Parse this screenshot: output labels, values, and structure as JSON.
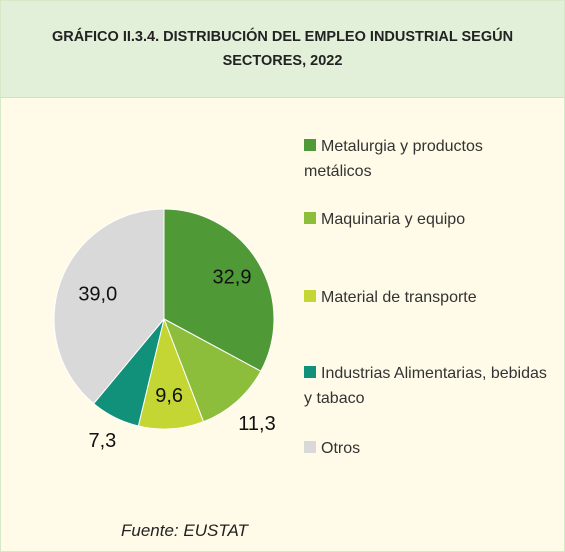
{
  "chart_data": {
    "type": "pie",
    "title": "GRÁFICO II.3.4. DISTRIBUCIÓN DEL EMPLEO INDUSTRIAL SEGÚN SECTORES, 2022",
    "categories": [
      "Metalurgia y productos metálicos",
      "Maquinaria y equipo",
      "Material de transporte",
      "Industrias Alimentarias, bebidas y tabaco",
      "Otros"
    ],
    "values": [
      32.9,
      11.3,
      9.6,
      7.3,
      39.0
    ],
    "value_labels": [
      "32,9",
      "11,3",
      "9,6",
      "7,3",
      "39,0"
    ],
    "colors": [
      "#4f9a36",
      "#8cbd3b",
      "#c4d634",
      "#12917a",
      "#d9d9d9"
    ],
    "source": "Fuente: EUSTAT"
  }
}
